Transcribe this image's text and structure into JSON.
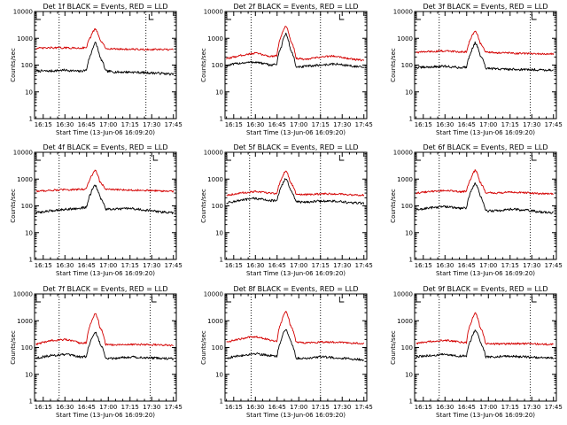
{
  "figure": {
    "colors": {
      "events": "#000000",
      "lld": "#d40000",
      "axes": "#000000"
    }
  },
  "chart_data": [
    {
      "type": "line",
      "title": "Det 1f BLACK = Events, RED = LLD",
      "xlabel": "Start Time (13-Jun-06 16:09:20)",
      "ylabel": "Counts/sec",
      "xlim": [
        "16:09",
        "17:47"
      ],
      "ylim": [
        1,
        10000
      ],
      "yscale": "log",
      "xticks": [
        "16:15",
        "16:30",
        "16:45",
        "17:00",
        "17:15",
        "17:30",
        "17:45"
      ],
      "yticks": [
        "1",
        "10",
        "100",
        "1000",
        "10000"
      ],
      "dotted_markers": [
        "16:26",
        "17:26"
      ],
      "small_marks": [
        "16:09",
        "17:27"
      ],
      "peak_time": "16:51",
      "series": [
        {
          "name": "BLACK = Events",
          "color": "#000000",
          "x": [
            "16:10",
            "16:20",
            "16:30",
            "16:40",
            "16:45",
            "16:48",
            "16:51",
            "16:54",
            "16:58",
            "17:05",
            "17:15",
            "17:25",
            "17:35",
            "17:45"
          ],
          "values": [
            60,
            60,
            65,
            58,
            65,
            250,
            700,
            200,
            60,
            55,
            55,
            52,
            50,
            45
          ]
        },
        {
          "name": "RED = LLD",
          "color": "#d40000",
          "x": [
            "16:10",
            "16:20",
            "16:30",
            "16:40",
            "16:45",
            "16:48",
            "16:51",
            "16:54",
            "16:58",
            "17:05",
            "17:15",
            "17:25",
            "17:35",
            "17:45"
          ],
          "values": [
            420,
            440,
            440,
            430,
            460,
            1200,
            2300,
            900,
            420,
            400,
            390,
            380,
            380,
            375
          ]
        }
      ]
    },
    {
      "type": "line",
      "title": "Det 2f BLACK = Events, RED = LLD",
      "xlabel": "Start Time (13-Jun-06 16:09:20)",
      "ylabel": "Counts/sec",
      "xlim": [
        "16:09",
        "17:47"
      ],
      "ylim": [
        1,
        10000
      ],
      "yscale": "log",
      "xticks": [
        "16:15",
        "16:30",
        "16:45",
        "17:00",
        "17:15",
        "17:30",
        "17:45"
      ],
      "yticks": [
        "1",
        "10",
        "100",
        "1000",
        "10000"
      ],
      "dotted_markers": [
        "16:27",
        "17:15"
      ],
      "small_marks": [
        "16:09",
        "17:27"
      ],
      "peak_time": "16:51",
      "series": [
        {
          "name": "BLACK = Events",
          "color": "#000000",
          "x": [
            "16:10",
            "16:20",
            "16:30",
            "16:40",
            "16:45",
            "16:48",
            "16:51",
            "16:54",
            "16:58",
            "17:05",
            "17:15",
            "17:25",
            "17:35",
            "17:45"
          ],
          "values": [
            95,
            120,
            130,
            100,
            110,
            500,
            1500,
            400,
            80,
            90,
            100,
            110,
            95,
            80
          ]
        },
        {
          "name": "RED = LLD",
          "color": "#d40000",
          "x": [
            "16:10",
            "16:20",
            "16:30",
            "16:40",
            "16:45",
            "16:48",
            "16:51",
            "16:54",
            "16:58",
            "17:05",
            "17:15",
            "17:25",
            "17:35",
            "17:45"
          ],
          "values": [
            170,
            230,
            280,
            210,
            230,
            1200,
            3000,
            900,
            180,
            160,
            200,
            220,
            170,
            150
          ]
        }
      ]
    },
    {
      "type": "line",
      "title": "Det 3f BLACK = Events, RED = LLD",
      "xlabel": "Start Time (13-Jun-06 16:09:20)",
      "ylabel": "Counts/sec",
      "xlim": [
        "16:09",
        "17:47"
      ],
      "ylim": [
        1,
        10000
      ],
      "yscale": "log",
      "xticks": [
        "16:15",
        "16:30",
        "16:45",
        "17:00",
        "17:15",
        "17:30",
        "17:45"
      ],
      "yticks": [
        "1",
        "10",
        "100",
        "1000",
        "10000"
      ],
      "dotted_markers": [
        "16:26",
        "17:29"
      ],
      "small_marks": [
        "16:09",
        "17:29"
      ],
      "peak_time": "16:51",
      "series": [
        {
          "name": "BLACK = Events",
          "color": "#000000",
          "x": [
            "16:10",
            "16:20",
            "16:30",
            "16:40",
            "16:45",
            "16:48",
            "16:51",
            "16:54",
            "16:58",
            "17:05",
            "17:15",
            "17:25",
            "17:35",
            "17:45"
          ],
          "values": [
            80,
            85,
            90,
            80,
            85,
            300,
            700,
            250,
            75,
            72,
            70,
            68,
            67,
            65
          ]
        },
        {
          "name": "RED = LLD",
          "color": "#d40000",
          "x": [
            "16:10",
            "16:20",
            "16:30",
            "16:40",
            "16:45",
            "16:48",
            "16:51",
            "16:54",
            "16:58",
            "17:05",
            "17:15",
            "17:25",
            "17:35",
            "17:45"
          ],
          "values": [
            300,
            320,
            340,
            310,
            320,
            1000,
            2000,
            700,
            300,
            290,
            280,
            270,
            260,
            260
          ]
        }
      ]
    },
    {
      "type": "line",
      "title": "Det 4f BLACK = Events, RED = LLD",
      "xlabel": "Start Time (13-Jun-06 16:09:20)",
      "ylabel": "Counts/sec",
      "xlim": [
        "16:09",
        "17:47"
      ],
      "ylim": [
        1,
        10000
      ],
      "yscale": "log",
      "xticks": [
        "16:15",
        "16:30",
        "16:45",
        "17:00",
        "17:15",
        "17:30",
        "17:45"
      ],
      "yticks": [
        "1",
        "10",
        "100",
        "1000",
        "10000"
      ],
      "dotted_markers": [
        "16:26",
        "17:29"
      ],
      "small_marks": [
        "16:09",
        "17:30"
      ],
      "peak_time": "16:51",
      "series": [
        {
          "name": "BLACK = Events",
          "color": "#000000",
          "x": [
            "16:10",
            "16:20",
            "16:30",
            "16:40",
            "16:45",
            "16:48",
            "16:51",
            "16:54",
            "16:58",
            "17:05",
            "17:15",
            "17:25",
            "17:35",
            "17:45"
          ],
          "values": [
            55,
            65,
            75,
            80,
            90,
            300,
            600,
            220,
            75,
            75,
            80,
            70,
            60,
            55
          ]
        },
        {
          "name": "RED = LLD",
          "color": "#d40000",
          "x": [
            "16:10",
            "16:20",
            "16:30",
            "16:40",
            "16:45",
            "16:48",
            "16:51",
            "16:54",
            "16:58",
            "17:05",
            "17:15",
            "17:25",
            "17:35",
            "17:45"
          ],
          "values": [
            350,
            380,
            400,
            410,
            430,
            1200,
            2200,
            800,
            420,
            400,
            390,
            380,
            360,
            350
          ]
        }
      ]
    },
    {
      "type": "line",
      "title": "Det 5f BLACK = Events, RED = LLD",
      "xlabel": "Start Time (13-Jun-06 16:09:20)",
      "ylabel": "Counts/sec",
      "xlim": [
        "16:09",
        "17:47"
      ],
      "ylim": [
        1,
        10000
      ],
      "yscale": "log",
      "xticks": [
        "16:15",
        "16:30",
        "16:45",
        "17:00",
        "17:15",
        "17:30",
        "17:45"
      ],
      "yticks": [
        "1",
        "10",
        "100",
        "1000",
        "10000"
      ],
      "dotted_markers": [
        "16:26",
        "17:15"
      ],
      "small_marks": [
        "16:09",
        "17:27"
      ],
      "peak_time": "16:51",
      "series": [
        {
          "name": "BLACK = Events",
          "color": "#000000",
          "x": [
            "16:10",
            "16:20",
            "16:30",
            "16:40",
            "16:45",
            "16:48",
            "16:51",
            "16:54",
            "16:58",
            "17:05",
            "17:15",
            "17:25",
            "17:35",
            "17:45"
          ],
          "values": [
            130,
            160,
            190,
            160,
            150,
            500,
            1100,
            400,
            140,
            140,
            150,
            150,
            130,
            125
          ]
        },
        {
          "name": "RED = LLD",
          "color": "#d40000",
          "x": [
            "16:10",
            "16:20",
            "16:30",
            "16:40",
            "16:45",
            "16:48",
            "16:51",
            "16:54",
            "16:58",
            "17:05",
            "17:15",
            "17:25",
            "17:35",
            "17:45"
          ],
          "values": [
            250,
            300,
            340,
            300,
            290,
            1000,
            2100,
            800,
            270,
            260,
            280,
            280,
            260,
            250
          ]
        }
      ]
    },
    {
      "type": "line",
      "title": "Det 6f BLACK = Events, RED = LLD",
      "xlabel": "Start Time (13-Jun-06 16:09:20)",
      "ylabel": "Counts/sec",
      "xlim": [
        "16:09",
        "17:47"
      ],
      "ylim": [
        1,
        10000
      ],
      "yscale": "log",
      "xticks": [
        "16:15",
        "16:30",
        "16:45",
        "17:00",
        "17:15",
        "17:30",
        "17:45"
      ],
      "yticks": [
        "1",
        "10",
        "100",
        "1000",
        "10000"
      ],
      "dotted_markers": [
        "16:26",
        "17:29"
      ],
      "small_marks": [
        "16:09",
        "17:29"
      ],
      "peak_time": "16:51",
      "series": [
        {
          "name": "BLACK = Events",
          "color": "#000000",
          "x": [
            "16:10",
            "16:20",
            "16:30",
            "16:40",
            "16:45",
            "16:48",
            "16:51",
            "16:54",
            "16:58",
            "17:05",
            "17:15",
            "17:25",
            "17:35",
            "17:45"
          ],
          "values": [
            70,
            85,
            95,
            80,
            85,
            350,
            700,
            250,
            65,
            65,
            75,
            70,
            60,
            55
          ]
        },
        {
          "name": "RED = LLD",
          "color": "#d40000",
          "x": [
            "16:10",
            "16:20",
            "16:30",
            "16:40",
            "16:45",
            "16:48",
            "16:51",
            "16:54",
            "16:58",
            "17:05",
            "17:15",
            "17:25",
            "17:35",
            "17:45"
          ],
          "values": [
            300,
            340,
            380,
            330,
            350,
            1100,
            2200,
            800,
            310,
            300,
            320,
            310,
            290,
            280
          ]
        }
      ]
    },
    {
      "type": "line",
      "title": "Det 7f BLACK = Events, RED = LLD",
      "xlabel": "Start Time (13-Jun-06 16:09:20)",
      "ylabel": "Counts/sec",
      "xlim": [
        "16:09",
        "17:47"
      ],
      "ylim": [
        1,
        10000
      ],
      "yscale": "log",
      "xticks": [
        "16:15",
        "16:30",
        "16:45",
        "17:00",
        "17:15",
        "17:30",
        "17:45"
      ],
      "yticks": [
        "1",
        "10",
        "100",
        "1000",
        "10000"
      ],
      "dotted_markers": [
        "16:26",
        "17:29"
      ],
      "small_marks": [
        "16:09",
        "17:29"
      ],
      "peak_time": "16:51",
      "series": [
        {
          "name": "BLACK = Events",
          "color": "#000000",
          "x": [
            "16:10",
            "16:20",
            "16:30",
            "16:40",
            "16:45",
            "16:48",
            "16:51",
            "16:54",
            "16:58",
            "17:05",
            "17:15",
            "17:25",
            "17:35",
            "17:45"
          ],
          "values": [
            40,
            50,
            55,
            45,
            45,
            180,
            380,
            150,
            40,
            40,
            45,
            42,
            40,
            38
          ]
        },
        {
          "name": "RED = LLD",
          "color": "#d40000",
          "x": [
            "16:10",
            "16:20",
            "16:30",
            "16:40",
            "16:45",
            "16:48",
            "16:51",
            "16:54",
            "16:58",
            "17:05",
            "17:15",
            "17:25",
            "17:35",
            "17:45"
          ],
          "values": [
            130,
            180,
            200,
            150,
            150,
            800,
            1900,
            600,
            130,
            125,
            130,
            130,
            125,
            120
          ]
        }
      ]
    },
    {
      "type": "line",
      "title": "Det 8f BLACK = Events, RED = LLD",
      "xlabel": "Start Time (13-Jun-06 16:09:20)",
      "ylabel": "Counts/sec",
      "xlim": [
        "16:09",
        "17:47"
      ],
      "ylim": [
        1,
        10000
      ],
      "yscale": "log",
      "xticks": [
        "16:15",
        "16:30",
        "16:45",
        "17:00",
        "17:15",
        "17:30",
        "17:45"
      ],
      "yticks": [
        "1",
        "10",
        "100",
        "1000",
        "10000"
      ],
      "dotted_markers": [
        "16:27",
        "17:15"
      ],
      "small_marks": [
        "16:09",
        "17:27"
      ],
      "peak_time": "16:51",
      "series": [
        {
          "name": "BLACK = Events",
          "color": "#000000",
          "x": [
            "16:10",
            "16:20",
            "16:30",
            "16:40",
            "16:45",
            "16:48",
            "16:51",
            "16:54",
            "16:58",
            "17:05",
            "17:15",
            "17:25",
            "17:35",
            "17:45"
          ],
          "values": [
            40,
            50,
            60,
            50,
            45,
            200,
            500,
            180,
            40,
            40,
            45,
            42,
            38,
            35
          ]
        },
        {
          "name": "RED = LLD",
          "color": "#d40000",
          "x": [
            "16:10",
            "16:20",
            "16:30",
            "16:40",
            "16:45",
            "16:48",
            "16:51",
            "16:54",
            "16:58",
            "17:05",
            "17:15",
            "17:25",
            "17:35",
            "17:45"
          ],
          "values": [
            160,
            210,
            260,
            190,
            170,
            900,
            2300,
            700,
            160,
            150,
            160,
            160,
            150,
            140
          ]
        }
      ]
    },
    {
      "type": "line",
      "title": "Det 9f BLACK = Events, RED = LLD",
      "xlabel": "Start Time (13-Jun-06 16:09:20)",
      "ylabel": "Counts/sec",
      "xlim": [
        "16:09",
        "17:47"
      ],
      "ylim": [
        1,
        10000
      ],
      "yscale": "log",
      "xticks": [
        "16:15",
        "16:30",
        "16:45",
        "17:00",
        "17:15",
        "17:30",
        "17:45"
      ],
      "yticks": [
        "1",
        "10",
        "100",
        "1000",
        "10000"
      ],
      "dotted_markers": [
        "16:26",
        "17:29"
      ],
      "small_marks": [
        "16:09",
        "17:29"
      ],
      "peak_time": "16:51",
      "series": [
        {
          "name": "BLACK = Events",
          "color": "#000000",
          "x": [
            "16:10",
            "16:20",
            "16:30",
            "16:40",
            "16:45",
            "16:48",
            "16:51",
            "16:54",
            "16:58",
            "17:05",
            "17:15",
            "17:25",
            "17:35",
            "17:45"
          ],
          "values": [
            45,
            50,
            55,
            48,
            48,
            200,
            450,
            170,
            45,
            45,
            48,
            45,
            42,
            40
          ]
        },
        {
          "name": "RED = LLD",
          "color": "#d40000",
          "x": [
            "16:10",
            "16:20",
            "16:30",
            "16:40",
            "16:45",
            "16:48",
            "16:51",
            "16:54",
            "16:58",
            "17:05",
            "17:15",
            "17:25",
            "17:35",
            "17:45"
          ],
          "values": [
            140,
            170,
            190,
            160,
            150,
            800,
            2000,
            600,
            140,
            135,
            140,
            140,
            135,
            130
          ]
        }
      ]
    }
  ]
}
